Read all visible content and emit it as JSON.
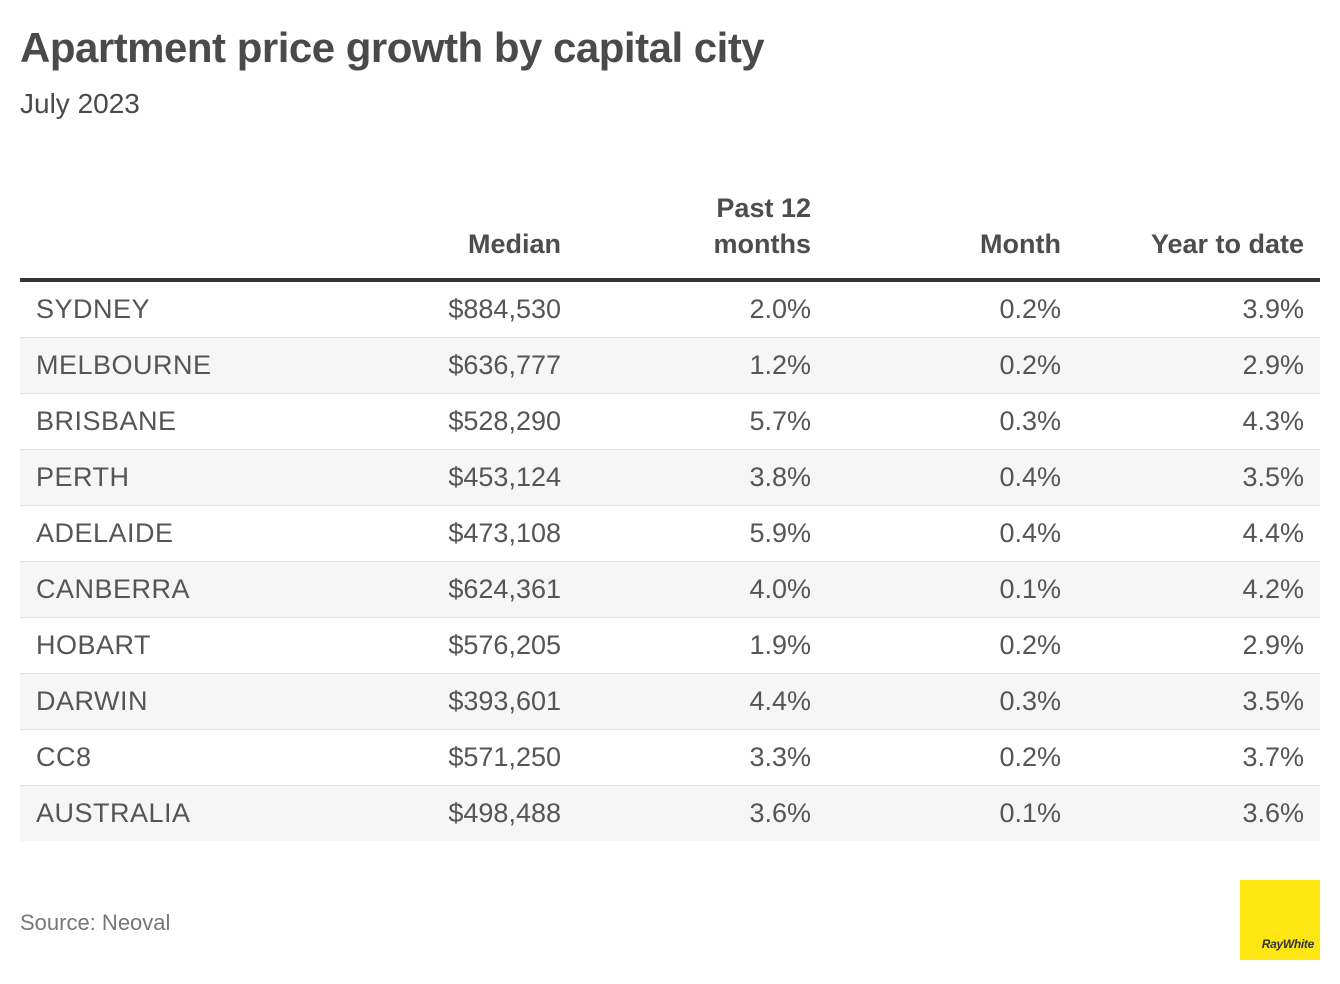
{
  "title": "Apartment price growth by capital city",
  "subtitle": "July 2023",
  "source": "Source: Neoval",
  "logo_text": "RayWhite",
  "colors": {
    "header_rule": "#333333",
    "row_alt": "#f6f6f6",
    "logo_bg": "#ffe512"
  },
  "chart_data": {
    "type": "table",
    "title": "Apartment price growth by capital city",
    "subtitle": "July 2023",
    "columns": [
      "",
      "Median",
      "Past 12 months",
      "Month",
      "Year to date"
    ],
    "header_lines": [
      [
        ""
      ],
      [
        "Median"
      ],
      [
        "Past 12",
        "months"
      ],
      [
        "Month"
      ],
      [
        "Year to date"
      ]
    ],
    "rows": [
      [
        "SYDNEY",
        "$884,530",
        "2.0%",
        "0.2%",
        "3.9%"
      ],
      [
        "MELBOURNE",
        "$636,777",
        "1.2%",
        "0.2%",
        "2.9%"
      ],
      [
        "BRISBANE",
        "$528,290",
        "5.7%",
        "0.3%",
        "4.3%"
      ],
      [
        "PERTH",
        "$453,124",
        "3.8%",
        "0.4%",
        "3.5%"
      ],
      [
        "ADELAIDE",
        "$473,108",
        "5.9%",
        "0.4%",
        "4.4%"
      ],
      [
        "CANBERRA",
        "$624,361",
        "4.0%",
        "0.1%",
        "4.2%"
      ],
      [
        "HOBART",
        "$576,205",
        "1.9%",
        "0.2%",
        "2.9%"
      ],
      [
        "DARWIN",
        "$393,601",
        "4.4%",
        "0.3%",
        "3.5%"
      ],
      [
        "CC8",
        "$571,250",
        "3.3%",
        "0.2%",
        "3.7%"
      ],
      [
        "AUSTRALIA",
        "$498,488",
        "3.6%",
        "0.1%",
        "3.6%"
      ]
    ],
    "source": "Source: Neoval"
  }
}
